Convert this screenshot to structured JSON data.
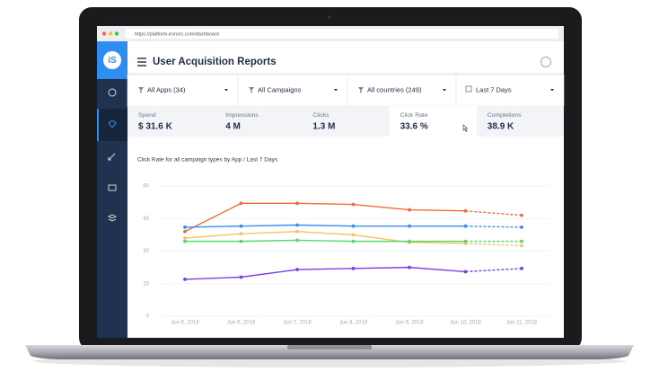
{
  "browser": {
    "url": "https://platform.ironsrc.com/dashboard"
  },
  "logo": {
    "text": "iS"
  },
  "header": {
    "title": "User Acquisition Reports"
  },
  "filters": [
    "All Apps (34)",
    "All Campaigns",
    "All countries (249)",
    "Last 7 Days"
  ],
  "metrics": [
    {
      "label": "Spend",
      "value": "$ 31.6 K"
    },
    {
      "label": "Impressions",
      "value": "4 M"
    },
    {
      "label": "Clicks",
      "value": "1.3 M"
    },
    {
      "label": "Click Rate",
      "value": "33.6 %"
    },
    {
      "label": "Completions",
      "value": "38.9 K"
    }
  ],
  "chart_data": {
    "type": "line",
    "title": "Click Rate for all campaign types by App / Last 7 Days",
    "categories": [
      "Jun 5, 2018",
      "Jun 6, 2018",
      "Jun 7, 2018",
      "Jun 8, 2018",
      "Jun 9, 2018",
      "Jun 10, 2018",
      "Jun 11, 2018"
    ],
    "series": [
      {
        "color": "#f26b3a",
        "values": [
          39,
          52,
          52,
          51.5,
          49,
          48.5,
          46.5
        ]
      },
      {
        "color": "#3d8ef0",
        "values": [
          41,
          41.5,
          42,
          41.5,
          41.5,
          41.5,
          41
        ]
      },
      {
        "color": "#f7c46a",
        "values": [
          36,
          38,
          39,
          37.5,
          34,
          33.5,
          32.5
        ]
      },
      {
        "color": "#57d66b",
        "values": [
          34.5,
          34.5,
          35,
          34.5,
          34.5,
          34.5,
          34.5
        ]
      },
      {
        "color": "#7b3fe4",
        "values": [
          17,
          18,
          21.5,
          22,
          22.5,
          20.5,
          22
        ]
      }
    ],
    "ylim": [
      0,
      60
    ],
    "yticks": [
      0,
      15,
      30,
      45,
      60
    ],
    "grid": true
  }
}
